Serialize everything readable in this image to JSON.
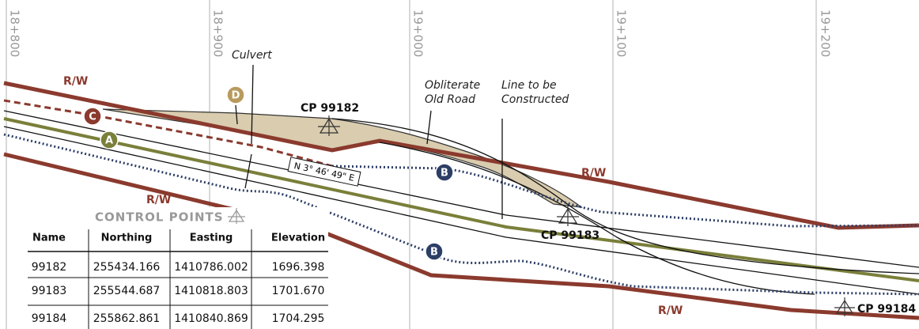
{
  "stations": [
    "18+800",
    "18+900",
    "19+000",
    "19+100",
    "19+200"
  ],
  "right_of_way_labels": [
    "R/W",
    "R/W",
    "R/W",
    "R/W"
  ],
  "markers": [
    "D",
    "C",
    "A",
    "B",
    "B"
  ],
  "annotations": {
    "culvert": [
      "Culvert"
    ],
    "obliterate": [
      "Obliterate",
      "Old Road"
    ],
    "construct": [
      "Line to be",
      "Constructed"
    ]
  },
  "bearing": "N 3° 46' 49\" E",
  "control_point_labels": [
    "CP 99182",
    "CP 99183",
    "CP 99184"
  ],
  "control_points_title": "CONTROL POINTS",
  "table": {
    "header": [
      "Name",
      "Northing",
      "Easting",
      "Elevation"
    ],
    "rows": [
      [
        "99182",
        "255434.166",
        "1410786.002",
        "1696.398"
      ],
      [
        "99183",
        "255544.687",
        "1410818.803",
        "1701.670"
      ],
      [
        "99184",
        "255862.861",
        "1410840.869",
        "1704.295"
      ]
    ]
  }
}
